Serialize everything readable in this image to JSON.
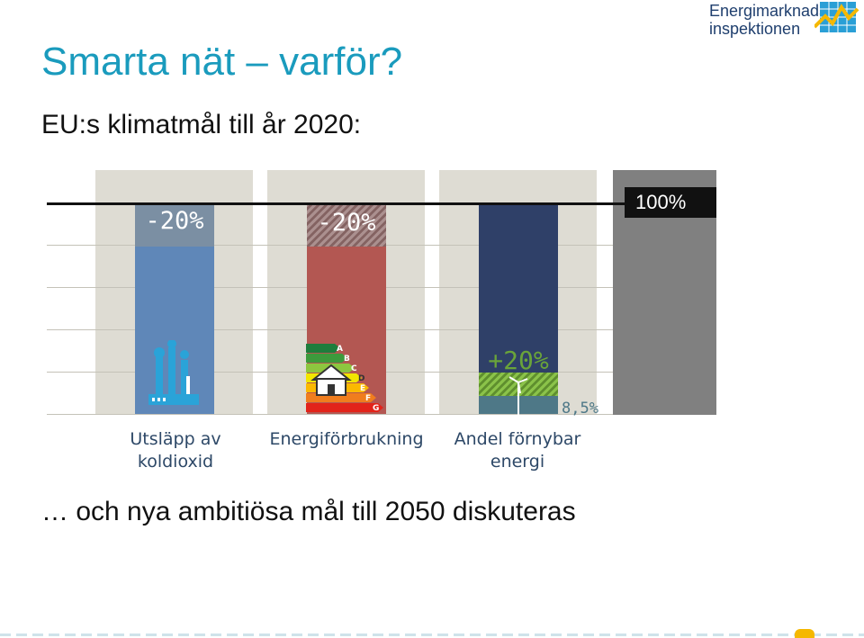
{
  "slide": {
    "title": "Smarta nät – varför?",
    "subtitle": "EU:s klimatmål till år 2020:",
    "bottom_text": "… och nya ambitiösa mål till 2050 diskuteras"
  },
  "logo": {
    "line1": "Energimarknads",
    "line2": "inspektionen"
  },
  "chart": {
    "reference_label": "100%",
    "bars": [
      {
        "value_label": "-20%",
        "category_line1": "Utsläpp av",
        "category_line2": "koldioxid",
        "color": "#5f87b8"
      },
      {
        "value_label": "-20%",
        "category_line1": "Energiförbrukning",
        "category_line2": "",
        "color": "#b35752"
      },
      {
        "value_label": "+20%",
        "value_label_2": "8,5%",
        "category_line1": "Andel förnybar",
        "category_line2": "energi",
        "color": "#2f4068"
      }
    ],
    "energy_classes": [
      "A",
      "B",
      "C",
      "D",
      "E",
      "F",
      "G"
    ],
    "reference_bar_color": "#808080"
  }
}
